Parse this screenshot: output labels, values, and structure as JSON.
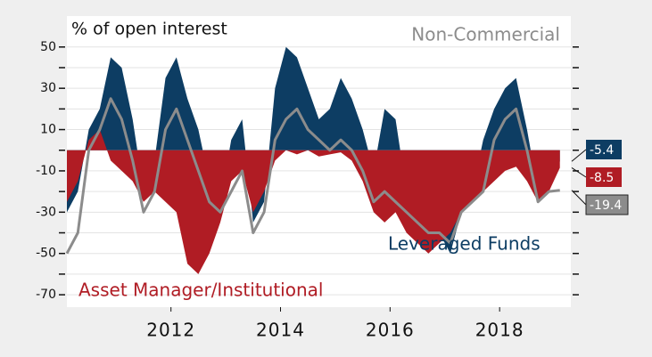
{
  "chart_data": {
    "type": "area",
    "y_label": "% of open interest",
    "x": [
      2010.1,
      2010.3,
      2010.5,
      2010.7,
      2010.9,
      2011.1,
      2011.3,
      2011.5,
      2011.7,
      2011.9,
      2012.1,
      2012.3,
      2012.5,
      2012.7,
      2012.9,
      2013.1,
      2013.3,
      2013.5,
      2013.7,
      2013.9,
      2014.1,
      2014.3,
      2014.5,
      2014.7,
      2014.9,
      2015.1,
      2015.3,
      2015.5,
      2015.7,
      2015.9,
      2016.1,
      2016.3,
      2016.5,
      2016.7,
      2016.9,
      2017.1,
      2017.3,
      2017.5,
      2017.7,
      2017.9,
      2018.1,
      2018.3,
      2018.5,
      2018.7,
      2018.9,
      2019.1
    ],
    "series": [
      {
        "name": "Leveraged Funds",
        "color": "#0d3d63",
        "style": "area",
        "values": [
          -30,
          -20,
          10,
          20,
          45,
          40,
          15,
          -20,
          -5,
          35,
          45,
          25,
          10,
          -15,
          -25,
          5,
          15,
          -35,
          -25,
          30,
          50,
          45,
          30,
          15,
          20,
          35,
          25,
          10,
          -10,
          20,
          15,
          -20,
          -35,
          -45,
          -40,
          -50,
          -30,
          -20,
          5,
          20,
          30,
          35,
          10,
          -20,
          -15,
          -5.4
        ]
      },
      {
        "name": "Asset Manager/Institutional",
        "color": "#b01c24",
        "style": "area",
        "values": [
          -25,
          -15,
          5,
          10,
          -5,
          -10,
          -15,
          -25,
          -20,
          -25,
          -30,
          -55,
          -60,
          -50,
          -35,
          -15,
          -10,
          -30,
          -20,
          -5,
          0,
          -2,
          0,
          -3,
          -2,
          -1,
          -5,
          -15,
          -30,
          -35,
          -30,
          -40,
          -45,
          -50,
          -45,
          -40,
          -30,
          -25,
          -20,
          -15,
          -10,
          -8,
          -15,
          -25,
          -20,
          -8.5
        ]
      },
      {
        "name": "Non-Commercial",
        "color": "#8c8c8c",
        "style": "line",
        "values": [
          -50,
          -40,
          0,
          10,
          25,
          15,
          -5,
          -30,
          -20,
          10,
          20,
          5,
          -10,
          -25,
          -30,
          -20,
          -10,
          -40,
          -30,
          5,
          15,
          20,
          10,
          5,
          0,
          5,
          0,
          -10,
          -25,
          -20,
          -25,
          -30,
          -35,
          -40,
          -40,
          -45,
          -30,
          -25,
          -20,
          5,
          15,
          20,
          0,
          -25,
          -20,
          -19.4
        ]
      }
    ],
    "xlim": [
      2010.1,
      2019.3
    ],
    "xticks": [
      2012,
      2014,
      2016,
      2018
    ],
    "ylim": [
      -76,
      65
    ],
    "yticks": [
      -70,
      -50,
      -30,
      -10,
      10,
      30,
      50
    ],
    "yticks_minor": [
      -60,
      -40,
      -20,
      0,
      20,
      40
    ],
    "grid": true
  }
}
